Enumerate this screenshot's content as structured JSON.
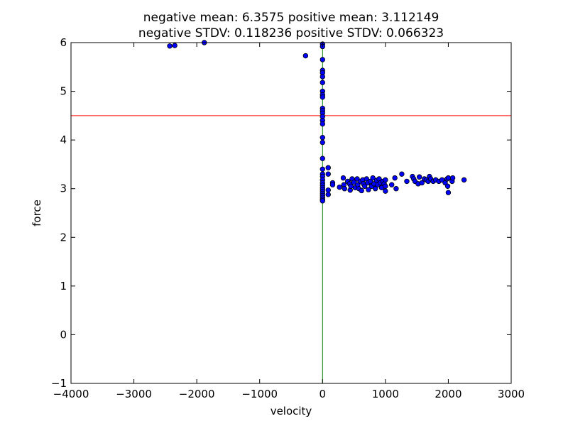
{
  "chart_data": {
    "type": "scatter",
    "title_lines": [
      "negative mean: 6.3575    positive mean: 3.112149",
      "negative STDV: 0.118236    positive STDV: 0.066323"
    ],
    "xlabel": "velocity",
    "ylabel": "force",
    "xlim": [
      -4000,
      3000
    ],
    "ylim": [
      -1,
      6
    ],
    "x_ticks": [
      -4000,
      -3000,
      -2000,
      -1000,
      0,
      1000,
      2000,
      3000
    ],
    "x_tick_labels": [
      "−4000",
      "−3000",
      "−2000",
      "−1000",
      "0",
      "1000",
      "2000",
      "3000"
    ],
    "y_ticks": [
      -1,
      0,
      1,
      2,
      3,
      4,
      5,
      6
    ],
    "y_tick_labels": [
      "−1",
      "0",
      "1",
      "2",
      "3",
      "4",
      "5",
      "6"
    ],
    "grid": false,
    "reference_lines": [
      {
        "orientation": "horizontal",
        "value": 4.5,
        "color": "#ff0000"
      },
      {
        "orientation": "vertical",
        "value": 0,
        "color": "#008000"
      }
    ],
    "series": [
      {
        "color": "#0000ff",
        "edgecolor": "#000000",
        "points": [
          [
            -2430,
            5.93
          ],
          [
            -2350,
            5.94
          ],
          [
            -1880,
            6.0
          ],
          [
            -270,
            5.73
          ],
          [
            0,
            5.97
          ],
          [
            0,
            5.92
          ],
          [
            0,
            5.65
          ],
          [
            0,
            5.43
          ],
          [
            0,
            5.38
          ],
          [
            0,
            5.3
          ],
          [
            0,
            5.18
          ],
          [
            0,
            5.0
          ],
          [
            0,
            4.93
          ],
          [
            0,
            4.88
          ],
          [
            0,
            4.65
          ],
          [
            0,
            4.6
          ],
          [
            0,
            4.55
          ],
          [
            0,
            4.48
          ],
          [
            0,
            4.4
          ],
          [
            0,
            4.33
          ],
          [
            0,
            4.05
          ],
          [
            0,
            3.95
          ],
          [
            0,
            3.62
          ],
          [
            0,
            3.4
          ],
          [
            0,
            3.3
          ],
          [
            0,
            3.25
          ],
          [
            0,
            3.18
          ],
          [
            0,
            3.12
          ],
          [
            0,
            3.07
          ],
          [
            0,
            3.02
          ],
          [
            0,
            2.98
          ],
          [
            0,
            2.94
          ],
          [
            0,
            2.9
          ],
          [
            0,
            2.86
          ],
          [
            0,
            2.82
          ],
          [
            0,
            2.78
          ],
          [
            0,
            2.75
          ],
          [
            90,
            3.43
          ],
          [
            90,
            2.97
          ],
          [
            90,
            2.88
          ],
          [
            90,
            3.3
          ],
          [
            160,
            3.12
          ],
          [
            160,
            3.08
          ],
          [
            270,
            3.03
          ],
          [
            330,
            3.22
          ],
          [
            340,
            3.08
          ],
          [
            350,
            3.0
          ],
          [
            400,
            3.15
          ],
          [
            430,
            3.1
          ],
          [
            440,
            2.97
          ],
          [
            450,
            3.05
          ],
          [
            470,
            3.2
          ],
          [
            500,
            3.13
          ],
          [
            520,
            3.02
          ],
          [
            550,
            3.2
          ],
          [
            560,
            3.08
          ],
          [
            580,
            3.0
          ],
          [
            600,
            3.15
          ],
          [
            620,
            2.96
          ],
          [
            640,
            3.18
          ],
          [
            650,
            3.1
          ],
          [
            670,
            3.05
          ],
          [
            700,
            3.2
          ],
          [
            720,
            3.12
          ],
          [
            730,
            2.98
          ],
          [
            760,
            3.15
          ],
          [
            780,
            3.05
          ],
          [
            800,
            3.22
          ],
          [
            820,
            3.1
          ],
          [
            840,
            3.0
          ],
          [
            860,
            3.17
          ],
          [
            880,
            3.08
          ],
          [
            900,
            3.2
          ],
          [
            920,
            3.12
          ],
          [
            940,
            3.02
          ],
          [
            960,
            3.15
          ],
          [
            980,
            3.1
          ],
          [
            1000,
            3.05
          ],
          [
            1000,
            3.18
          ],
          [
            1000,
            2.95
          ],
          [
            1100,
            3.08
          ],
          [
            1150,
            3.22
          ],
          [
            1170,
            3.0
          ],
          [
            1260,
            3.3
          ],
          [
            1340,
            3.15
          ],
          [
            1430,
            3.25
          ],
          [
            1450,
            3.2
          ],
          [
            1470,
            3.15
          ],
          [
            1520,
            3.1
          ],
          [
            1540,
            3.24
          ],
          [
            1580,
            3.12
          ],
          [
            1620,
            3.2
          ],
          [
            1650,
            3.18
          ],
          [
            1680,
            3.15
          ],
          [
            1700,
            3.25
          ],
          [
            1720,
            3.2
          ],
          [
            1760,
            3.15
          ],
          [
            1800,
            3.18
          ],
          [
            1850,
            3.15
          ],
          [
            1900,
            3.18
          ],
          [
            1950,
            3.12
          ],
          [
            1980,
            3.2
          ],
          [
            1990,
            3.05
          ],
          [
            2000,
            2.92
          ],
          [
            2000,
            3.22
          ],
          [
            2060,
            3.15
          ],
          [
            2070,
            3.22
          ],
          [
            2250,
            3.18
          ]
        ]
      }
    ]
  }
}
